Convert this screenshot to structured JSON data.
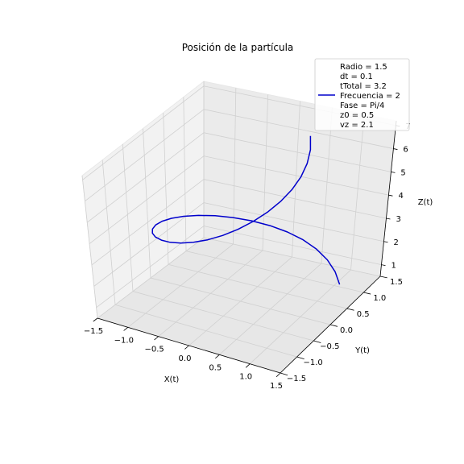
{
  "chart_data": {
    "type": "line",
    "projection": "3d",
    "title": "Posición de la partícula",
    "xlabel": "X(t)",
    "ylabel": "Y(t)",
    "zlabel": "Z(t)",
    "xlim": [
      -1.5,
      1.5
    ],
    "ylim": [
      -1.5,
      1.5
    ],
    "zlim": [
      0.5,
      7.2
    ],
    "x_ticks": [
      "−1.5",
      "−1.0",
      "−0.5",
      "0.0",
      "0.5",
      "1.0",
      "1.5"
    ],
    "y_ticks": [
      "−1.5",
      "−1.0",
      "−0.5",
      "0.0",
      "0.5",
      "1.0",
      "1.5"
    ],
    "z_ticks": [
      "1",
      "2",
      "3",
      "4",
      "5",
      "6",
      "7"
    ],
    "grid": true,
    "legend_placement": "top-right",
    "legend_entries": [
      "Radio = 1.5",
      "dt = 0.1",
      "tTotal = 3.2",
      "Frecuencia = 2",
      "Fase = Pi/4",
      "z0 = 0.5",
      "vz = 2.1"
    ],
    "line_color": "#0000cc",
    "series": [
      {
        "label": "Frecuencia = 2",
        "params": {
          "radio": 1.5,
          "dt": 0.1,
          "tTotal": 3.2,
          "frecuencia": 2,
          "fase": "Pi/4",
          "z0": 0.5,
          "vz": 2.1
        },
        "x": [
          1.061,
          0.881,
          0.667,
          0.427,
          0.173,
          -0.087,
          -0.343,
          -0.584,
          -0.799,
          -0.98,
          -1.119,
          -1.212,
          -1.253,
          -1.242,
          -1.18,
          -1.069,
          -0.914,
          -0.722,
          -0.499,
          -0.254,
          0.0,
          0.254,
          0.499,
          0.722,
          0.914,
          1.069,
          1.18,
          1.242,
          1.253,
          1.212,
          1.119,
          0.98,
          0.799
        ],
        "y": [
          1.061,
          1.233,
          1.367,
          1.455,
          1.494,
          1.481,
          1.417,
          1.306,
          1.151,
          0.96,
          0.738,
          0.495,
          0.239,
          -0.021,
          -0.28,
          -0.529,
          -0.758,
          -0.958,
          -1.122,
          -1.245,
          -1.322,
          -1.349,
          -1.327,
          -1.256,
          -1.14,
          -0.984,
          -0.793,
          -0.574,
          -0.336,
          -0.087,
          0.165,
          0.412,
          0.644
        ],
        "z": [
          0.5,
          0.71,
          0.92,
          1.13,
          1.34,
          1.55,
          1.76,
          1.97,
          2.18,
          2.39,
          2.6,
          2.81,
          3.02,
          3.23,
          3.44,
          3.65,
          3.86,
          4.07,
          4.28,
          4.49,
          4.7,
          4.91,
          5.12,
          5.33,
          5.54,
          5.75,
          5.96,
          6.17,
          6.38,
          6.59,
          6.8,
          7.01,
          7.22
        ]
      }
    ]
  }
}
